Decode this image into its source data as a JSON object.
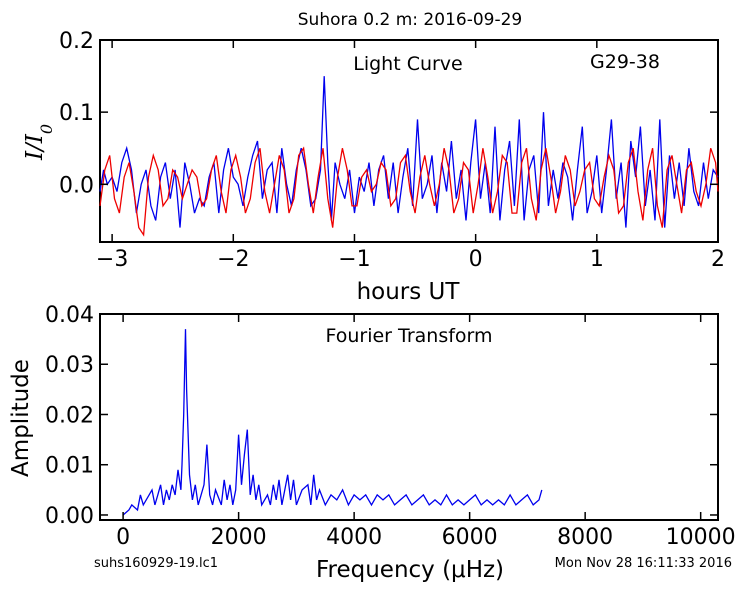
{
  "page_title": "Suhora 0.2 m:  2016-09-29",
  "footer": {
    "filename": "suhs160929-19.lc1",
    "timestamp": "Mon Nov 28 16:11:33 2016"
  },
  "chart_data": [
    {
      "type": "line",
      "annotation": "Light Curve",
      "object_label": "G29-38",
      "xlabel": "hours UT",
      "ylabel": "I/I0",
      "xlim": [
        -3.1,
        2.0
      ],
      "ylim": [
        -0.08,
        0.2
      ],
      "xticks": [
        "−3",
        "−2",
        "−1",
        "0",
        "1",
        "2"
      ],
      "yticks": [
        "0.0",
        "0.1",
        "0.2"
      ],
      "colors": {
        "observed": "#0000ee",
        "model": "#ee0000"
      },
      "series": [
        {
          "color": "#0000ee",
          "x": [
            -3.1,
            -3.07,
            -3.04,
            -3.0,
            -2.96,
            -2.92,
            -2.88,
            -2.84,
            -2.8,
            -2.76,
            -2.72,
            -2.68,
            -2.64,
            -2.6,
            -2.56,
            -2.52,
            -2.48,
            -2.44,
            -2.4,
            -2.36,
            -2.32,
            -2.28,
            -2.24,
            -2.2,
            -2.16,
            -2.12,
            -2.08,
            -2.04,
            -2.0,
            -1.96,
            -1.92,
            -1.88,
            -1.84,
            -1.8,
            -1.76,
            -1.72,
            -1.68,
            -1.64,
            -1.6,
            -1.56,
            -1.52,
            -1.48,
            -1.44,
            -1.4,
            -1.36,
            -1.32,
            -1.28,
            -1.25,
            -1.22,
            -1.19,
            -1.16,
            -1.12,
            -1.08,
            -1.04,
            -1.0,
            -0.96,
            -0.92,
            -0.88,
            -0.84,
            -0.8,
            -0.76,
            -0.72,
            -0.68,
            -0.64,
            -0.6,
            -0.56,
            -0.52,
            -0.48,
            -0.44,
            -0.4,
            -0.36,
            -0.32,
            -0.28,
            -0.24,
            -0.2,
            -0.16,
            -0.12,
            -0.08,
            -0.04,
            0.0,
            0.04,
            0.08,
            0.12,
            0.16,
            0.2,
            0.24,
            0.28,
            0.32,
            0.36,
            0.4,
            0.44,
            0.48,
            0.52,
            0.56,
            0.6,
            0.64,
            0.68,
            0.72,
            0.76,
            0.8,
            0.84,
            0.88,
            0.92,
            0.96,
            1.0,
            1.04,
            1.08,
            1.12,
            1.16,
            1.2,
            1.24,
            1.28,
            1.32,
            1.36,
            1.4,
            1.44,
            1.48,
            1.52,
            1.56,
            1.6,
            1.64,
            1.68,
            1.72,
            1.76,
            1.8,
            1.84,
            1.88,
            1.92,
            1.96,
            2.0
          ],
          "y": [
            -0.01,
            0.02,
            0.0,
            0.01,
            -0.01,
            0.03,
            0.05,
            0.02,
            -0.04,
            0.0,
            0.02,
            -0.03,
            -0.05,
            0.01,
            0.03,
            -0.02,
            0.02,
            -0.06,
            0.03,
            0.0,
            -0.04,
            -0.02,
            -0.03,
            0.01,
            0.03,
            -0.04,
            0.02,
            0.05,
            0.01,
            0.0,
            -0.03,
            0.01,
            0.04,
            0.06,
            -0.02,
            0.02,
            0.03,
            -0.04,
            0.05,
            0.0,
            -0.03,
            0.02,
            0.05,
            0.02,
            -0.03,
            -0.02,
            0.02,
            0.15,
            0.03,
            -0.05,
            0.03,
            0.0,
            -0.02,
            0.02,
            -0.04,
            0.01,
            -0.01,
            0.03,
            -0.03,
            0.02,
            0.04,
            -0.02,
            0.03,
            -0.04,
            0.01,
            0.05,
            -0.03,
            0.09,
            -0.02,
            0.0,
            0.04,
            -0.04,
            0.03,
            -0.01,
            0.06,
            -0.02,
            0.02,
            -0.05,
            0.03,
            0.09,
            -0.02,
            0.03,
            -0.04,
            0.08,
            -0.05,
            0.02,
            0.06,
            -0.03,
            0.09,
            -0.05,
            0.02,
            0.04,
            -0.04,
            0.1,
            -0.03,
            0.02,
            -0.02,
            0.03,
            0.01,
            -0.05,
            0.02,
            0.08,
            -0.04,
            -0.01,
            0.04,
            -0.04,
            0.02,
            0.09,
            -0.02,
            0.03,
            -0.06,
            0.06,
            0.01,
            0.08,
            -0.03,
            0.02,
            -0.05,
            0.09,
            -0.06,
            0.04,
            -0.02,
            0.03,
            -0.03,
            0.05,
            -0.01,
            -0.03,
            0.03,
            -0.02,
            0.02,
            0.01
          ]
        },
        {
          "color": "#ee0000",
          "x": [
            -3.1,
            -3.06,
            -3.02,
            -2.98,
            -2.94,
            -2.9,
            -2.86,
            -2.82,
            -2.78,
            -2.74,
            -2.7,
            -2.66,
            -2.62,
            -2.58,
            -2.54,
            -2.5,
            -2.46,
            -2.42,
            -2.38,
            -2.34,
            -2.3,
            -2.26,
            -2.22,
            -2.18,
            -2.14,
            -2.1,
            -2.06,
            -2.02,
            -1.98,
            -1.94,
            -1.9,
            -1.86,
            -1.82,
            -1.78,
            -1.74,
            -1.7,
            -1.66,
            -1.62,
            -1.58,
            -1.54,
            -1.5,
            -1.46,
            -1.42,
            -1.38,
            -1.34,
            -1.3,
            -1.26,
            -1.22,
            -1.18,
            -1.14,
            -1.1,
            -1.06,
            -1.02,
            -0.98,
            -0.94,
            -0.9,
            -0.86,
            -0.82,
            -0.78,
            -0.74,
            -0.7,
            -0.66,
            -0.62,
            -0.58,
            -0.54,
            -0.5,
            -0.46,
            -0.42,
            -0.38,
            -0.34,
            -0.3,
            -0.26,
            -0.22,
            -0.18,
            -0.14,
            -0.1,
            -0.06,
            -0.02,
            0.02,
            0.06,
            0.1,
            0.14,
            0.18,
            0.22,
            0.26,
            0.3,
            0.34,
            0.38,
            0.42,
            0.46,
            0.5,
            0.54,
            0.58,
            0.62,
            0.66,
            0.7,
            0.74,
            0.78,
            0.82,
            0.86,
            0.9,
            0.94,
            0.98,
            1.02,
            1.06,
            1.1,
            1.14,
            1.18,
            1.22,
            1.26,
            1.3,
            1.34,
            1.38,
            1.42,
            1.46,
            1.5,
            1.54,
            1.58,
            1.62,
            1.66,
            1.7,
            1.74,
            1.78,
            1.82,
            1.86,
            1.9,
            1.94,
            1.98,
            2.0
          ],
          "y": [
            -0.03,
            0.02,
            0.04,
            -0.02,
            -0.04,
            0.01,
            0.03,
            -0.01,
            -0.06,
            -0.07,
            0.01,
            0.04,
            0.02,
            -0.03,
            -0.02,
            0.02,
            0.01,
            -0.02,
            0.0,
            0.02,
            0.01,
            -0.03,
            -0.02,
            0.02,
            0.04,
            -0.01,
            -0.04,
            0.02,
            0.04,
            0.01,
            -0.04,
            -0.02,
            0.03,
            0.05,
            -0.01,
            -0.04,
            0.0,
            0.04,
            0.02,
            -0.04,
            -0.02,
            0.04,
            0.05,
            0.0,
            -0.04,
            0.01,
            0.05,
            -0.02,
            -0.06,
            0.01,
            0.05,
            0.02,
            -0.03,
            -0.03,
            0.01,
            0.02,
            -0.01,
            0.0,
            0.03,
            0.02,
            -0.03,
            -0.02,
            0.03,
            0.04,
            -0.01,
            -0.04,
            0.01,
            0.04,
            0.0,
            -0.03,
            0.0,
            0.05,
            0.02,
            -0.04,
            -0.02,
            0.03,
            0.02,
            -0.04,
            0.0,
            0.05,
            0.01,
            -0.04,
            -0.01,
            0.04,
            0.03,
            -0.04,
            -0.04,
            0.03,
            0.05,
            -0.02,
            -0.05,
            0.02,
            0.05,
            0.01,
            -0.04,
            -0.01,
            0.04,
            0.02,
            -0.03,
            -0.01,
            0.02,
            0.03,
            -0.02,
            -0.03,
            0.01,
            0.04,
            0.02,
            -0.04,
            -0.03,
            0.03,
            0.05,
            -0.01,
            -0.05,
            0.02,
            0.05,
            -0.03,
            -0.06,
            0.02,
            0.04,
            0.0,
            -0.04,
            0.02,
            0.03,
            -0.01,
            -0.03,
            0.0,
            0.05,
            0.03,
            -0.01
          ]
        }
      ]
    },
    {
      "type": "line",
      "annotation": "Fourier Transform",
      "xlabel": "Frequency (μHz)",
      "ylabel": "Amplitude",
      "xlim": [
        -400,
        10300
      ],
      "ylim": [
        -0.001,
        0.04
      ],
      "xticks": [
        "0",
        "2000",
        "4000",
        "6000",
        "8000",
        "10000"
      ],
      "yticks": [
        "0.00",
        "0.01",
        "0.02",
        "0.03",
        "0.04"
      ],
      "series": [
        {
          "color": "#0000ee",
          "x": [
            0,
            100,
            150,
            250,
            300,
            350,
            400,
            500,
            550,
            600,
            650,
            700,
            750,
            800,
            850,
            900,
            950,
            1000,
            1020,
            1050,
            1080,
            1100,
            1150,
            1200,
            1250,
            1300,
            1350,
            1400,
            1450,
            1480,
            1500,
            1550,
            1600,
            1700,
            1750,
            1800,
            1850,
            1900,
            1950,
            2000,
            2050,
            2100,
            2150,
            2200,
            2250,
            2300,
            2350,
            2400,
            2500,
            2550,
            2600,
            2650,
            2700,
            2750,
            2800,
            2850,
            2900,
            2950,
            3000,
            3100,
            3200,
            3250,
            3300,
            3350,
            3400,
            3500,
            3600,
            3700,
            3800,
            3900,
            4000,
            4100,
            4200,
            4300,
            4400,
            4500,
            4600,
            4700,
            4800,
            4900,
            5000,
            5100,
            5200,
            5300,
            5400,
            5500,
            5600,
            5700,
            5800,
            5900,
            6000,
            6100,
            6200,
            6300,
            6400,
            6500,
            6600,
            6700,
            6800,
            6900,
            7000,
            7100,
            7200,
            7250
          ],
          "y": [
            0.0,
            0.001,
            0.002,
            0.001,
            0.004,
            0.002,
            0.003,
            0.005,
            0.002,
            0.004,
            0.006,
            0.002,
            0.005,
            0.003,
            0.006,
            0.004,
            0.009,
            0.005,
            0.01,
            0.02,
            0.037,
            0.025,
            0.008,
            0.003,
            0.006,
            0.002,
            0.004,
            0.006,
            0.014,
            0.008,
            0.004,
            0.002,
            0.005,
            0.002,
            0.007,
            0.003,
            0.006,
            0.002,
            0.005,
            0.016,
            0.006,
            0.012,
            0.017,
            0.004,
            0.008,
            0.003,
            0.006,
            0.002,
            0.004,
            0.002,
            0.006,
            0.003,
            0.007,
            0.002,
            0.005,
            0.008,
            0.003,
            0.007,
            0.002,
            0.005,
            0.006,
            0.002,
            0.008,
            0.003,
            0.005,
            0.002,
            0.004,
            0.003,
            0.005,
            0.002,
            0.004,
            0.003,
            0.004,
            0.002,
            0.004,
            0.003,
            0.004,
            0.002,
            0.003,
            0.004,
            0.002,
            0.003,
            0.004,
            0.002,
            0.003,
            0.002,
            0.004,
            0.002,
            0.003,
            0.002,
            0.003,
            0.004,
            0.002,
            0.003,
            0.002,
            0.003,
            0.002,
            0.004,
            0.002,
            0.003,
            0.004,
            0.002,
            0.003,
            0.005
          ]
        }
      ]
    }
  ]
}
